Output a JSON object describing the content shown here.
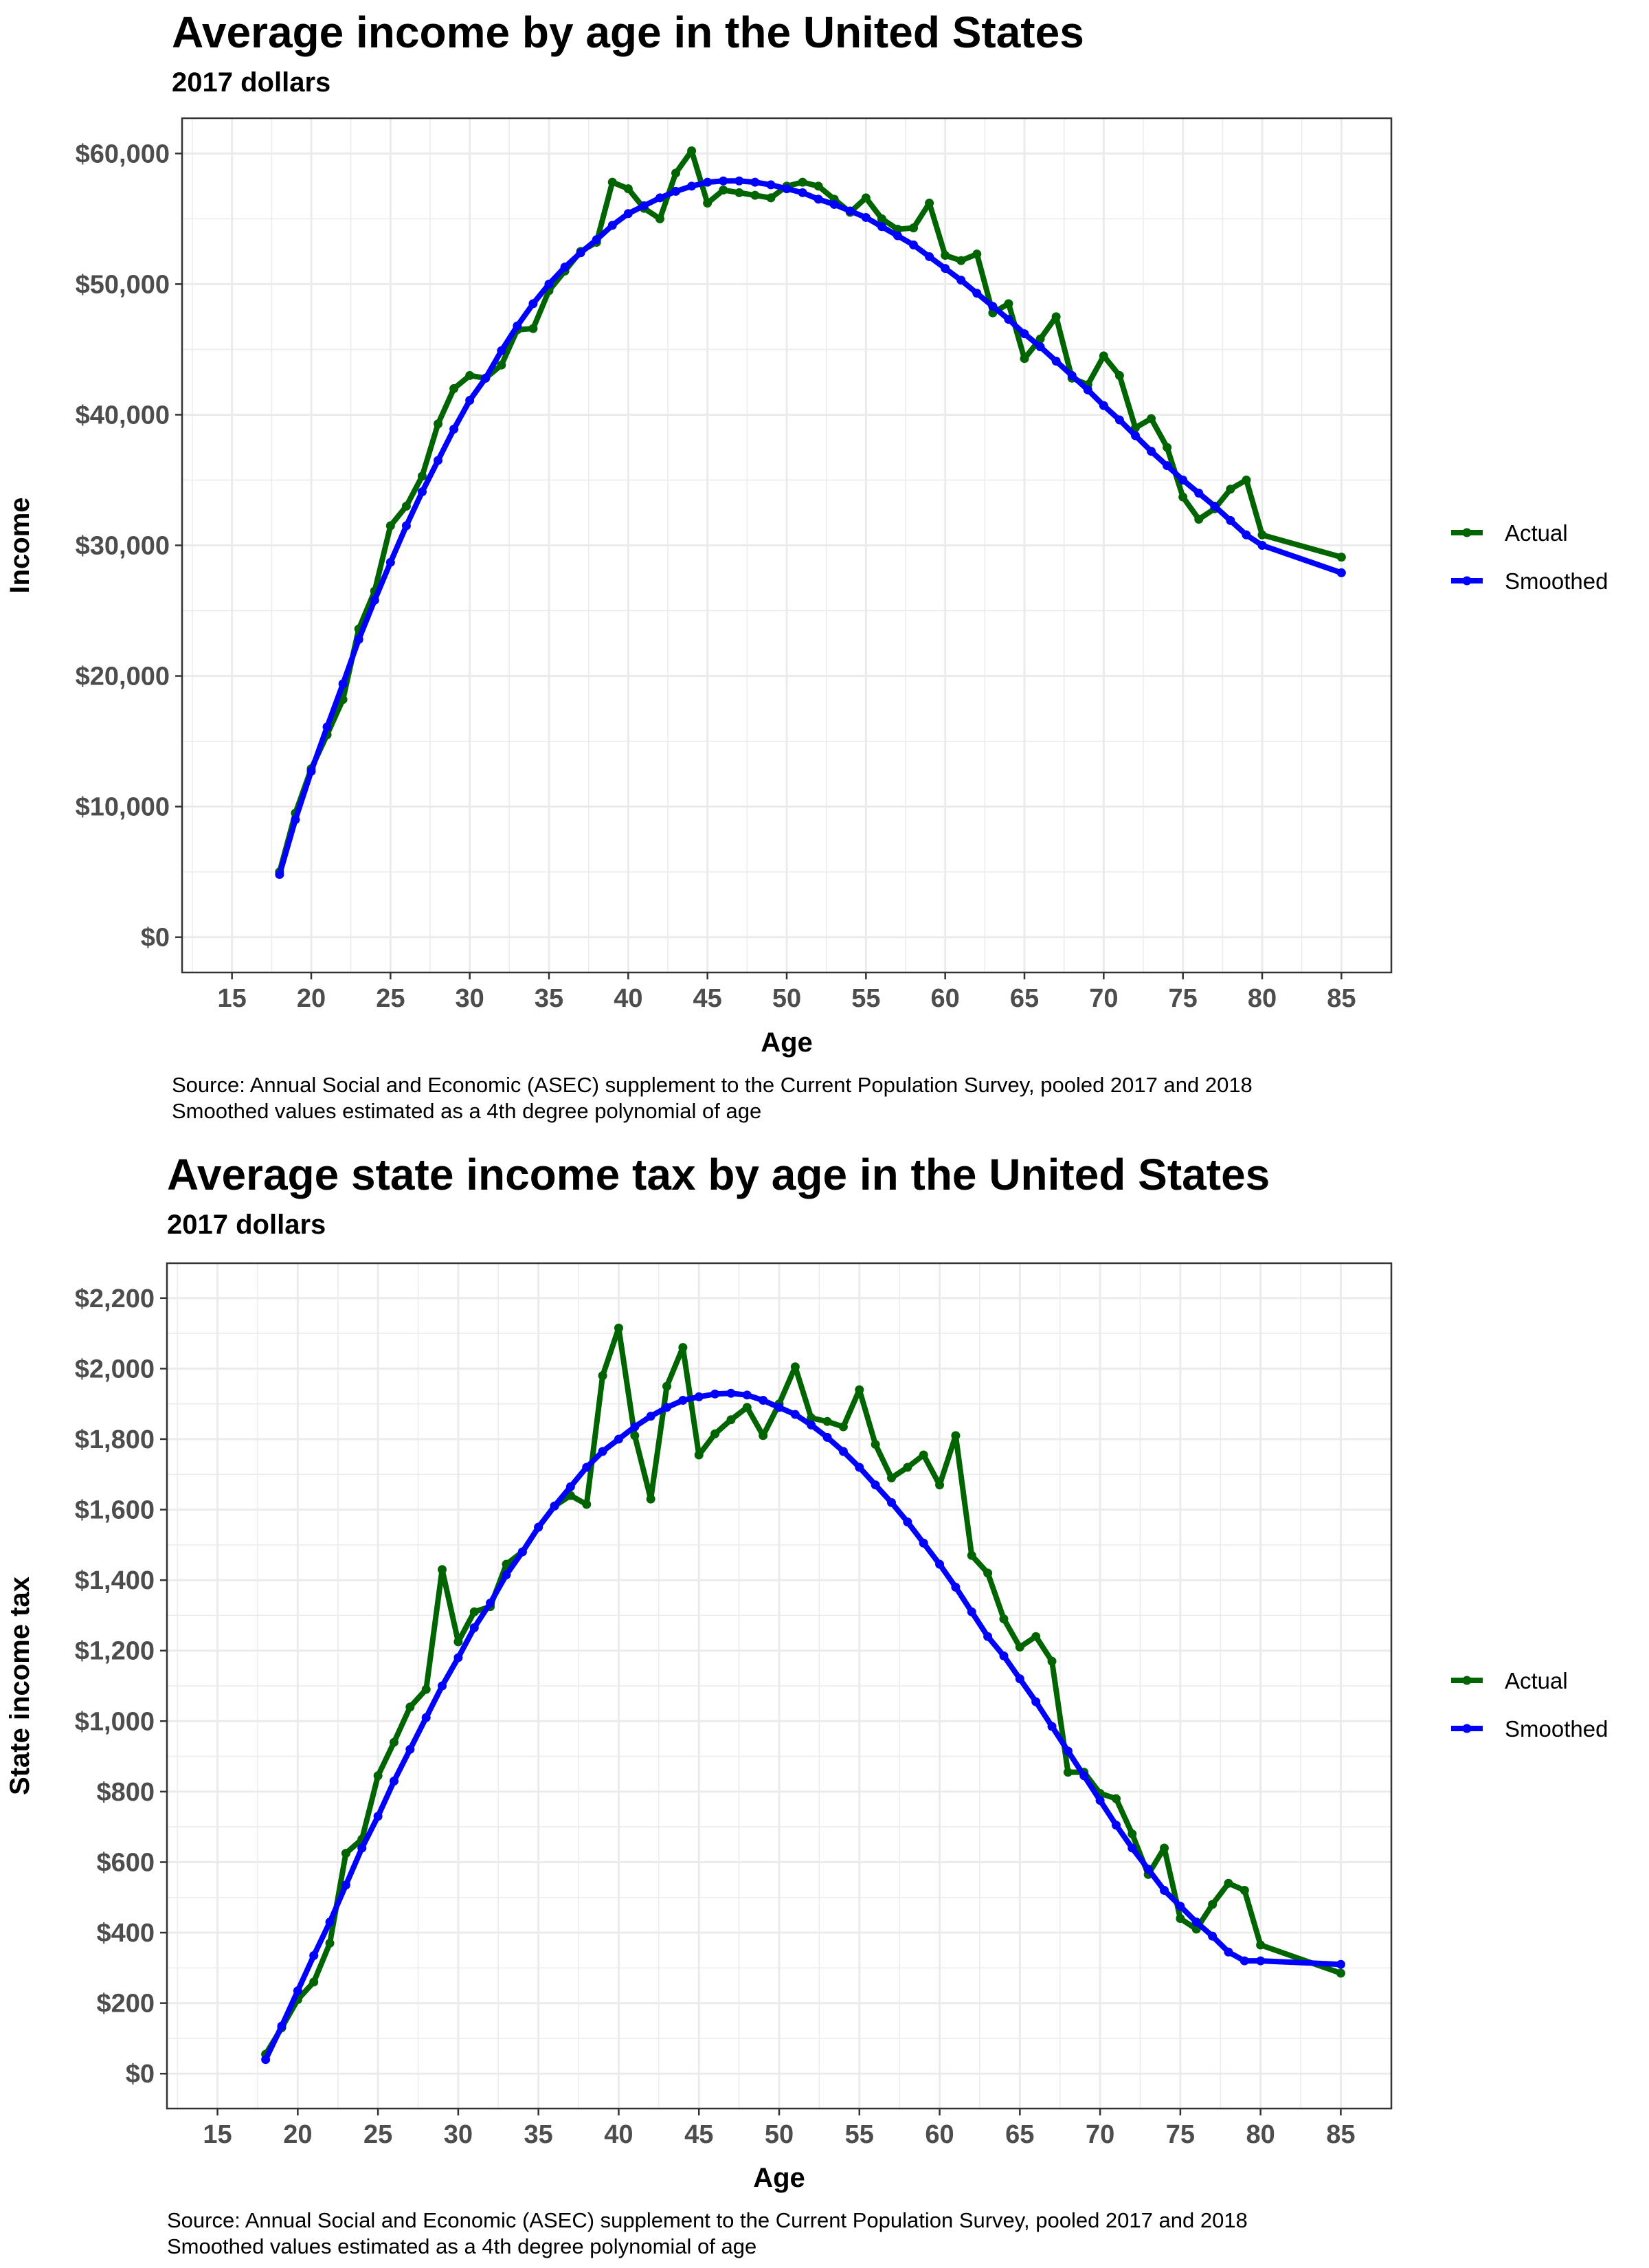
{
  "chart_data": [
    {
      "type": "line",
      "title": "Average income by age in the United States",
      "subtitle": "2017 dollars",
      "xlabel": "Age",
      "ylabel": "Income",
      "xlim": [
        15,
        85
      ],
      "ylim": [
        0,
        60000
      ],
      "xticks": [
        "15",
        "20",
        "25",
        "30",
        "35",
        "40",
        "45",
        "50",
        "55",
        "60",
        "65",
        "70",
        "75",
        "80",
        "85"
      ],
      "yticks": [
        "$0",
        "$10,000",
        "$20,000",
        "$30,000",
        "$40,000",
        "$50,000",
        "$60,000"
      ],
      "grid": true,
      "legend": "right",
      "caption": [
        "Source: Annual Social and Economic (ASEC) supplement to the Current Population Survey, pooled 2017 and 2018",
        "Smoothed values estimated as a 4th degree polynomial of age"
      ],
      "x": [
        18,
        19,
        20,
        21,
        22,
        23,
        24,
        25,
        26,
        27,
        28,
        29,
        30,
        31,
        32,
        33,
        34,
        35,
        36,
        37,
        38,
        39,
        40,
        41,
        42,
        43,
        44,
        45,
        46,
        47,
        48,
        49,
        50,
        51,
        52,
        53,
        54,
        55,
        56,
        57,
        58,
        59,
        60,
        61,
        62,
        63,
        64,
        65,
        66,
        67,
        68,
        69,
        70,
        71,
        72,
        73,
        74,
        75,
        76,
        77,
        78,
        79,
        80,
        85
      ],
      "series": [
        {
          "name": "Actual",
          "color": "#006400",
          "values": [
            5000,
            9500,
            12900,
            15500,
            18200,
            23600,
            26500,
            31500,
            33000,
            35300,
            39300,
            42000,
            43000,
            42800,
            43800,
            46500,
            46600,
            49500,
            51000,
            52500,
            53200,
            57800,
            57300,
            55800,
            55000,
            58500,
            60200,
            56200,
            57200,
            57000,
            56800,
            56600,
            57500,
            57800,
            57500,
            56500,
            55500,
            56600,
            55000,
            54200,
            54300,
            56200,
            52200,
            51800,
            52300,
            47800,
            48500,
            44300,
            45800,
            47500,
            42800,
            42300,
            44500,
            43000,
            39000,
            39700,
            37500,
            33700,
            32000,
            32800,
            34300,
            35000,
            30800,
            29100
          ]
        },
        {
          "name": "Smoothed",
          "color": "#0000ff",
          "values": [
            4800,
            9000,
            12700,
            16100,
            19400,
            22800,
            25800,
            28700,
            31500,
            34100,
            36500,
            38900,
            41100,
            42800,
            44900,
            46800,
            48500,
            50000,
            51300,
            52400,
            53400,
            54500,
            55400,
            56000,
            56600,
            57100,
            57500,
            57800,
            57900,
            57900,
            57800,
            57600,
            57300,
            57000,
            56500,
            56100,
            55600,
            55100,
            54400,
            53700,
            53000,
            52100,
            51200,
            50300,
            49300,
            48300,
            47300,
            46200,
            45200,
            44100,
            43000,
            41900,
            40700,
            39600,
            38400,
            37200,
            36100,
            35000,
            34000,
            33000,
            31900,
            30800,
            30000,
            27900
          ]
        }
      ]
    },
    {
      "type": "line",
      "title": "Average state income tax by age in the United States",
      "subtitle": "2017 dollars",
      "xlabel": "Age",
      "ylabel": "State income tax",
      "xlim": [
        15,
        85
      ],
      "ylim": [
        0,
        2200
      ],
      "xticks": [
        "15",
        "20",
        "25",
        "30",
        "35",
        "40",
        "45",
        "50",
        "55",
        "60",
        "65",
        "70",
        "75",
        "80",
        "85"
      ],
      "yticks": [
        "$0",
        "$200",
        "$400",
        "$600",
        "$800",
        "$1,000",
        "$1,200",
        "$1,400",
        "$1,600",
        "$1,800",
        "$2,000",
        "$2,200"
      ],
      "grid": true,
      "legend": "right",
      "caption": [
        "Source: Annual Social and Economic (ASEC) supplement to the Current Population Survey, pooled 2017 and 2018",
        "Smoothed values estimated as a 4th degree polynomial of age"
      ],
      "x": [
        18,
        19,
        20,
        21,
        22,
        23,
        24,
        25,
        26,
        27,
        28,
        29,
        30,
        31,
        32,
        33,
        34,
        35,
        36,
        37,
        38,
        39,
        40,
        41,
        42,
        43,
        44,
        45,
        46,
        47,
        48,
        49,
        50,
        51,
        52,
        53,
        54,
        55,
        56,
        57,
        58,
        59,
        60,
        61,
        62,
        63,
        64,
        65,
        66,
        67,
        68,
        69,
        70,
        71,
        72,
        73,
        74,
        75,
        76,
        77,
        78,
        79,
        80,
        85
      ],
      "series": [
        {
          "name": "Actual",
          "color": "#006400",
          "values": [
            55,
            130,
            210,
            260,
            370,
            625,
            665,
            845,
            940,
            1040,
            1090,
            1430,
            1225,
            1310,
            1325,
            1445,
            1480,
            1550,
            1610,
            1640,
            1615,
            1980,
            2115,
            1810,
            1630,
            1950,
            2060,
            1755,
            1815,
            1855,
            1890,
            1810,
            1900,
            2005,
            1860,
            1850,
            1835,
            1940,
            1785,
            1690,
            1720,
            1755,
            1670,
            1810,
            1470,
            1420,
            1290,
            1210,
            1240,
            1170,
            855,
            855,
            795,
            780,
            680,
            565,
            640,
            440,
            410,
            480,
            540,
            520,
            365,
            285
          ]
        },
        {
          "name": "Smoothed",
          "color": "#0000ff",
          "values": [
            40,
            135,
            235,
            335,
            430,
            535,
            640,
            730,
            830,
            920,
            1010,
            1100,
            1180,
            1265,
            1335,
            1415,
            1480,
            1550,
            1610,
            1665,
            1720,
            1765,
            1800,
            1835,
            1865,
            1890,
            1910,
            1920,
            1928,
            1930,
            1925,
            1910,
            1890,
            1870,
            1840,
            1805,
            1765,
            1720,
            1670,
            1620,
            1565,
            1505,
            1445,
            1380,
            1310,
            1240,
            1185,
            1120,
            1055,
            985,
            915,
            845,
            775,
            705,
            640,
            580,
            520,
            475,
            430,
            390,
            345,
            320,
            320,
            310
          ]
        }
      ]
    }
  ]
}
